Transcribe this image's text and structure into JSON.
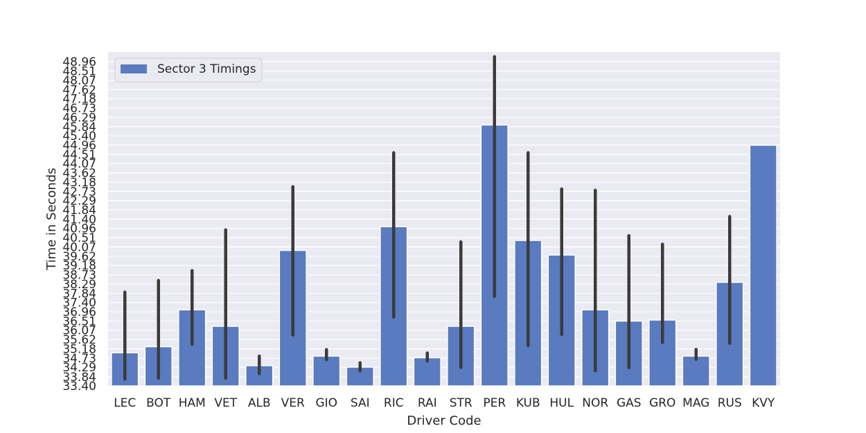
{
  "chart_data": {
    "type": "bar",
    "xlabel": "Driver Code",
    "ylabel": "Time in Seconds",
    "ylim": [
      33.4,
      48.96
    ],
    "yticks": [
      "33.40",
      "33.84",
      "34.29",
      "34.73",
      "35.18",
      "35.62",
      "36.07",
      "36.51",
      "36.96",
      "37.40",
      "37.84",
      "38.29",
      "38.73",
      "39.18",
      "39.62",
      "40.07",
      "40.51",
      "40.96",
      "41.40",
      "41.84",
      "42.29",
      "42.73",
      "43.18",
      "43.62",
      "44.07",
      "44.51",
      "44.96",
      "45.40",
      "45.84",
      "46.29",
      "46.73",
      "47.18",
      "47.62",
      "48.07",
      "48.51",
      "48.96"
    ],
    "grid": true,
    "legend_position": "upper-left",
    "bar_color": "#5a7bbf",
    "error_color": "#3b3b3b",
    "background_color": "#eaeaf2",
    "categories": [
      "LEC",
      "BOT",
      "HAM",
      "VET",
      "ALB",
      "VER",
      "GIO",
      "SAI",
      "RIC",
      "RAI",
      "STR",
      "PER",
      "KUB",
      "HUL",
      "NOR",
      "GAS",
      "GRO",
      "MAG",
      "RUS",
      "KVY"
    ],
    "series": [
      {
        "name": "Sector 3 Timings",
        "values": [
          34.99,
          35.28,
          37.05,
          36.26,
          34.37,
          39.9,
          34.83,
          34.3,
          41.04,
          34.75,
          36.26,
          45.92,
          40.38,
          39.68,
          37.05,
          36.51,
          36.56,
          34.83,
          38.37,
          44.95
        ],
        "error_low": [
          33.72,
          33.77,
          35.4,
          33.77,
          33.99,
          35.84,
          34.66,
          34.12,
          36.7,
          34.59,
          34.29,
          37.7,
          35.33,
          35.87,
          34.13,
          34.27,
          35.49,
          34.67,
          35.44,
          null
        ],
        "error_high": [
          37.9,
          38.46,
          38.93,
          40.89,
          34.83,
          42.96,
          35.14,
          34.51,
          44.59,
          34.98,
          40.31,
          49.2,
          44.59,
          42.85,
          42.79,
          40.61,
          40.2,
          35.15,
          41.53,
          null
        ]
      }
    ]
  }
}
